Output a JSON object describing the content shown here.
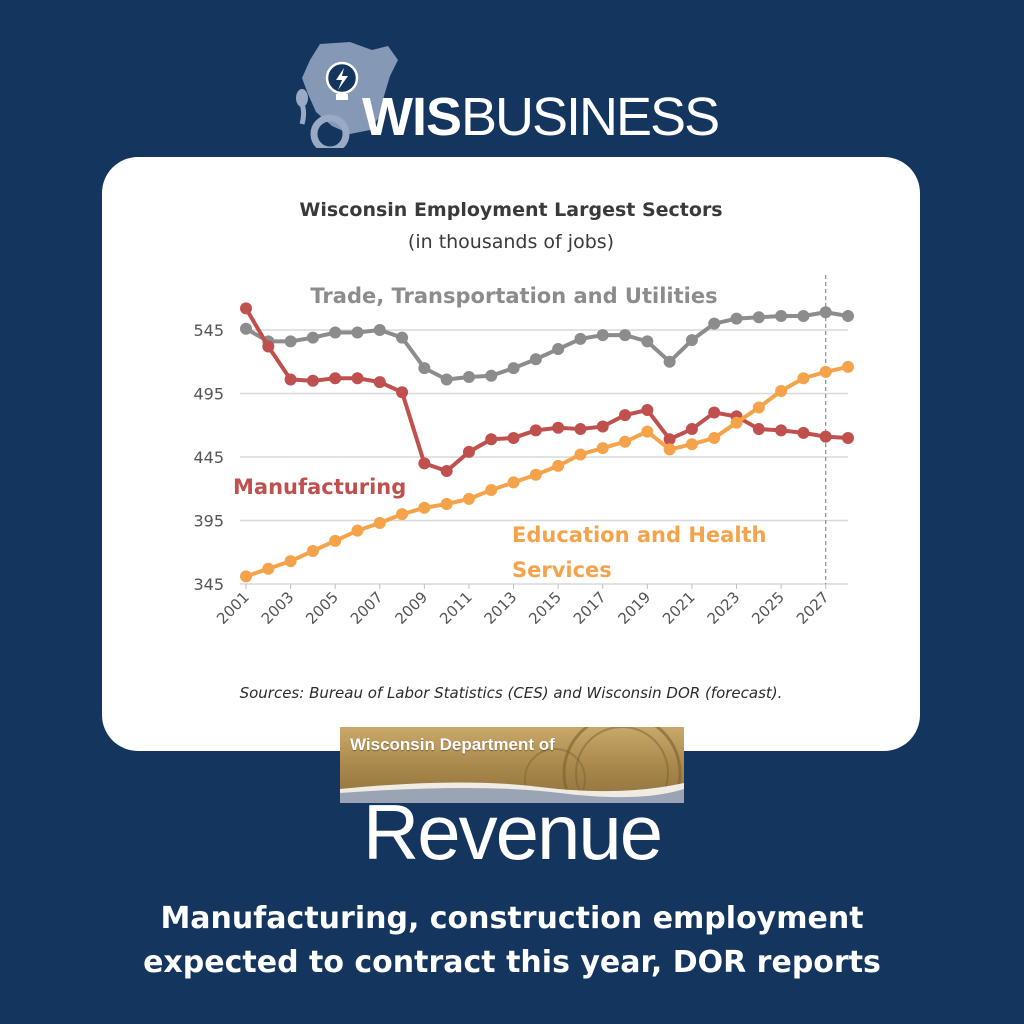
{
  "logo": {
    "wis": "WIS",
    "business": "BUSINESS"
  },
  "dor": {
    "banner_text": "Wisconsin Department of",
    "name": "Revenue"
  },
  "headline": {
    "line1": "Manufacturing, construction employment",
    "line2": "expected to contract this year, DOR reports"
  },
  "colors": {
    "background": "#13355e",
    "trade": "#8c8c8c",
    "manufacturing": "#c0504d",
    "education": "#f5a34a"
  },
  "chart_data": {
    "type": "line",
    "title": "Wisconsin Employment Largest Sectors",
    "subtitle": "(in thousands of jobs)",
    "source": "Sources: Bureau of Labor Statistics (CES) and Wisconsin DOR (forecast).",
    "x": [
      2001,
      2002,
      2003,
      2004,
      2005,
      2006,
      2007,
      2008,
      2009,
      2010,
      2011,
      2012,
      2013,
      2014,
      2015,
      2016,
      2017,
      2018,
      2019,
      2020,
      2021,
      2022,
      2023,
      2024,
      2025,
      2026,
      2027,
      2028
    ],
    "x_tick_labels": [
      "2001",
      "2003",
      "2005",
      "2007",
      "2009",
      "2011",
      "2013",
      "2015",
      "2017",
      "2019",
      "2021",
      "2023",
      "2025",
      "2027"
    ],
    "y_ticks": [
      345,
      395,
      445,
      495,
      545
    ],
    "ylim": [
      345,
      570
    ],
    "grid": true,
    "forecast_divider_x": 2027,
    "series": [
      {
        "name": "Trade, Transportation and Utilities",
        "color": "#8c8c8c",
        "values": [
          546,
          536,
          536,
          539,
          543,
          543,
          545,
          539,
          515,
          506,
          508,
          509,
          515,
          522,
          530,
          538,
          541,
          541,
          536,
          520,
          537,
          550,
          554,
          555,
          556,
          556,
          559,
          556
        ]
      },
      {
        "name": "Manufacturing",
        "color": "#c0504d",
        "values": [
          562,
          532,
          506,
          505,
          507,
          507,
          504,
          496,
          440,
          434,
          449,
          459,
          460,
          466,
          468,
          467,
          469,
          478,
          482,
          459,
          467,
          480,
          477,
          467,
          466,
          464,
          461,
          460
        ]
      },
      {
        "name": "Education and Health Services",
        "color": "#f5a34a",
        "values": [
          351,
          357,
          363,
          371,
          379,
          387,
          393,
          400,
          405,
          408,
          412,
          419,
          425,
          431,
          438,
          447,
          452,
          457,
          465,
          451,
          455,
          460,
          472,
          484,
          497,
          507,
          512,
          516
        ]
      }
    ],
    "series_labels": [
      {
        "lines": [
          "Trade, Transportation and Utilities"
        ]
      },
      {
        "lines": [
          "Manufacturing"
        ]
      },
      {
        "lines": [
          "Education and Health",
          "Services"
        ]
      }
    ]
  }
}
